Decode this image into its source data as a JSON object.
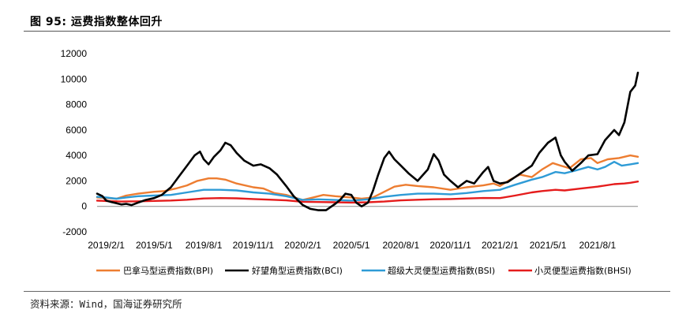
{
  "figure": {
    "title": "图 95: 运费指数整体回升",
    "source": "资料来源：Wind，国海证券研究所"
  },
  "chart_data": {
    "type": "line",
    "title": "",
    "xlabel": "",
    "ylabel": "",
    "ylim": [
      -2000,
      12000
    ],
    "yticks": [
      -2000,
      0,
      2000,
      4000,
      6000,
      8000,
      10000,
      12000
    ],
    "xticks": [
      "2019/2/1",
      "2019/5/1",
      "2019/8/1",
      "2019/11/1",
      "2020/2/1",
      "2020/5/1",
      "2020/8/1",
      "2020/11/1",
      "2021/2/1",
      "2021/5/1",
      "2021/8/1"
    ],
    "x_end": "2021/10/15",
    "grid": false,
    "legend": "bottom",
    "series": [
      {
        "name": "巴拿马型运费指数(BPI)",
        "color": "#ED7D31",
        "points": [
          [
            "2019/1/15",
            700
          ],
          [
            "2019/2/1",
            650
          ],
          [
            "2019/2/20",
            600
          ],
          [
            "2019/3/10",
            850
          ],
          [
            "2019/4/1",
            1000
          ],
          [
            "2019/5/1",
            1150
          ],
          [
            "2019/5/20",
            1200
          ],
          [
            "2019/6/10",
            1400
          ],
          [
            "2019/7/1",
            1650
          ],
          [
            "2019/7/20",
            2000
          ],
          [
            "2019/8/10",
            2200
          ],
          [
            "2019/8/25",
            2200
          ],
          [
            "2019/9/10",
            2100
          ],
          [
            "2019/10/1",
            1800
          ],
          [
            "2019/11/1",
            1500
          ],
          [
            "2019/11/20",
            1400
          ],
          [
            "2019/12/10",
            1050
          ],
          [
            "2020/1/1",
            900
          ],
          [
            "2020/1/20",
            650
          ],
          [
            "2020/2/1",
            500
          ],
          [
            "2020/2/20",
            700
          ],
          [
            "2020/3/10",
            900
          ],
          [
            "2020/4/1",
            800
          ],
          [
            "2020/5/1",
            700
          ],
          [
            "2020/5/20",
            600
          ],
          [
            "2020/6/10",
            700
          ],
          [
            "2020/7/1",
            1150
          ],
          [
            "2020/7/20",
            1550
          ],
          [
            "2020/8/10",
            1700
          ],
          [
            "2020/9/1",
            1600
          ],
          [
            "2020/10/1",
            1500
          ],
          [
            "2020/11/1",
            1300
          ],
          [
            "2020/12/1",
            1500
          ],
          [
            "2021/1/1",
            1650
          ],
          [
            "2021/1/20",
            1800
          ],
          [
            "2021/2/1",
            1600
          ],
          [
            "2021/2/20",
            2100
          ],
          [
            "2021/3/10",
            2500
          ],
          [
            "2021/4/1",
            2300
          ],
          [
            "2021/4/20",
            2900
          ],
          [
            "2021/5/10",
            3400
          ],
          [
            "2021/5/25",
            3200
          ],
          [
            "2021/6/10",
            3000
          ],
          [
            "2021/7/1",
            3700
          ],
          [
            "2021/7/20",
            3800
          ],
          [
            "2021/8/1",
            3400
          ],
          [
            "2021/8/20",
            3700
          ],
          [
            "2021/9/10",
            3800
          ],
          [
            "2021/10/1",
            4000
          ],
          [
            "2021/10/15",
            3900
          ]
        ]
      },
      {
        "name": "好望角型运费指数(BCI)",
        "color": "#000000",
        "points": [
          [
            "2019/1/15",
            1000
          ],
          [
            "2019/1/25",
            800
          ],
          [
            "2019/2/1",
            450
          ],
          [
            "2019/2/10",
            350
          ],
          [
            "2019/2/20",
            250
          ],
          [
            "2019/3/1",
            150
          ],
          [
            "2019/3/10",
            200
          ],
          [
            "2019/3/20",
            100
          ],
          [
            "2019/4/1",
            300
          ],
          [
            "2019/4/15",
            500
          ],
          [
            "2019/5/1",
            650
          ],
          [
            "2019/5/15",
            900
          ],
          [
            "2019/6/1",
            1500
          ],
          [
            "2019/6/15",
            2300
          ],
          [
            "2019/7/1",
            3200
          ],
          [
            "2019/7/15",
            4000
          ],
          [
            "2019/7/25",
            4300
          ],
          [
            "2019/8/1",
            3700
          ],
          [
            "2019/8/10",
            3300
          ],
          [
            "2019/8/20",
            3900
          ],
          [
            "2019/9/1",
            4400
          ],
          [
            "2019/9/10",
            5000
          ],
          [
            "2019/9/20",
            4800
          ],
          [
            "2019/10/1",
            4200
          ],
          [
            "2019/10/15",
            3600
          ],
          [
            "2019/11/1",
            3200
          ],
          [
            "2019/11/15",
            3300
          ],
          [
            "2019/12/1",
            3000
          ],
          [
            "2019/12/15",
            2500
          ],
          [
            "2020/1/1",
            1600
          ],
          [
            "2020/1/15",
            800
          ],
          [
            "2020/2/1",
            100
          ],
          [
            "2020/2/15",
            -200
          ],
          [
            "2020/3/1",
            -300
          ],
          [
            "2020/3/15",
            -300
          ],
          [
            "2020/4/1",
            200
          ],
          [
            "2020/4/10",
            500
          ],
          [
            "2020/4/20",
            1000
          ],
          [
            "2020/5/1",
            900
          ],
          [
            "2020/5/10",
            300
          ],
          [
            "2020/5/20",
            0
          ],
          [
            "2020/6/1",
            300
          ],
          [
            "2020/6/10",
            1200
          ],
          [
            "2020/6/20",
            2500
          ],
          [
            "2020/7/1",
            3800
          ],
          [
            "2020/7/10",
            4300
          ],
          [
            "2020/7/20",
            3700
          ],
          [
            "2020/8/1",
            3200
          ],
          [
            "2020/8/15",
            2600
          ],
          [
            "2020/9/1",
            2000
          ],
          [
            "2020/9/20",
            2900
          ],
          [
            "2020/10/1",
            4100
          ],
          [
            "2020/10/10",
            3600
          ],
          [
            "2020/10/20",
            2500
          ],
          [
            "2020/11/1",
            2000
          ],
          [
            "2020/11/15",
            1500
          ],
          [
            "2020/12/1",
            2000
          ],
          [
            "2020/12/15",
            1800
          ],
          [
            "2021/1/1",
            2700
          ],
          [
            "2021/1/10",
            3100
          ],
          [
            "2021/1/20",
            2000
          ],
          [
            "2021/2/1",
            1800
          ],
          [
            "2021/2/15",
            1900
          ],
          [
            "2021/3/1",
            2300
          ],
          [
            "2021/3/15",
            2700
          ],
          [
            "2021/4/1",
            3200
          ],
          [
            "2021/4/15",
            4200
          ],
          [
            "2021/5/1",
            5000
          ],
          [
            "2021/5/15",
            5400
          ],
          [
            "2021/5/25",
            4000
          ],
          [
            "2021/6/1",
            3500
          ],
          [
            "2021/6/15",
            2800
          ],
          [
            "2021/7/1",
            3400
          ],
          [
            "2021/7/15",
            4000
          ],
          [
            "2021/8/1",
            4100
          ],
          [
            "2021/8/15",
            5200
          ],
          [
            "2021/9/1",
            6000
          ],
          [
            "2021/9/10",
            5600
          ],
          [
            "2021/9/20",
            6600
          ],
          [
            "2021/10/1",
            9000
          ],
          [
            "2021/10/10",
            9500
          ],
          [
            "2021/10/15",
            10500
          ]
        ]
      },
      {
        "name": "超级大灵便型运费指数(BSI)",
        "color": "#2E9BD6",
        "points": [
          [
            "2019/1/15",
            750
          ],
          [
            "2019/2/1",
            700
          ],
          [
            "2019/2/20",
            600
          ],
          [
            "2019/3/10",
            700
          ],
          [
            "2019/4/1",
            800
          ],
          [
            "2019/5/1",
            850
          ],
          [
            "2019/6/1",
            900
          ],
          [
            "2019/7/1",
            1100
          ],
          [
            "2019/8/1",
            1300
          ],
          [
            "2019/9/1",
            1300
          ],
          [
            "2019/10/1",
            1250
          ],
          [
            "2019/11/1",
            1100
          ],
          [
            "2019/12/1",
            1000
          ],
          [
            "2020/1/1",
            800
          ],
          [
            "2020/2/1",
            500
          ],
          [
            "2020/3/1",
            550
          ],
          [
            "2020/4/1",
            500
          ],
          [
            "2020/5/1",
            450
          ],
          [
            "2020/6/1",
            550
          ],
          [
            "2020/7/1",
            750
          ],
          [
            "2020/8/1",
            900
          ],
          [
            "2020/9/1",
            1000
          ],
          [
            "2020/10/1",
            1000
          ],
          [
            "2020/11/1",
            950
          ],
          [
            "2020/12/1",
            1050
          ],
          [
            "2021/1/1",
            1200
          ],
          [
            "2021/2/1",
            1300
          ],
          [
            "2021/3/1",
            1700
          ],
          [
            "2021/4/1",
            2100
          ],
          [
            "2021/4/20",
            2300
          ],
          [
            "2021/5/15",
            2700
          ],
          [
            "2021/6/1",
            2600
          ],
          [
            "2021/6/20",
            2800
          ],
          [
            "2021/7/15",
            3100
          ],
          [
            "2021/8/1",
            2900
          ],
          [
            "2021/8/15",
            3100
          ],
          [
            "2021/9/1",
            3500
          ],
          [
            "2021/9/15",
            3200
          ],
          [
            "2021/10/1",
            3300
          ],
          [
            "2021/10/15",
            3400
          ]
        ]
      },
      {
        "name": "小灵便型运费指数(BHSI)",
        "color": "#E51C1C",
        "points": [
          [
            "2019/1/15",
            450
          ],
          [
            "2019/2/1",
            420
          ],
          [
            "2019/3/1",
            380
          ],
          [
            "2019/4/1",
            400
          ],
          [
            "2019/5/1",
            430
          ],
          [
            "2019/6/1",
            460
          ],
          [
            "2019/7/1",
            520
          ],
          [
            "2019/8/1",
            620
          ],
          [
            "2019/9/1",
            650
          ],
          [
            "2019/10/1",
            630
          ],
          [
            "2019/11/1",
            580
          ],
          [
            "2019/12/1",
            530
          ],
          [
            "2020/1/1",
            470
          ],
          [
            "2020/2/1",
            360
          ],
          [
            "2020/3/1",
            340
          ],
          [
            "2020/4/1",
            320
          ],
          [
            "2020/5/1",
            300
          ],
          [
            "2020/6/1",
            320
          ],
          [
            "2020/7/1",
            380
          ],
          [
            "2020/8/1",
            470
          ],
          [
            "2020/9/1",
            520
          ],
          [
            "2020/10/1",
            560
          ],
          [
            "2020/11/1",
            580
          ],
          [
            "2020/12/1",
            620
          ],
          [
            "2021/1/1",
            660
          ],
          [
            "2021/2/1",
            650
          ],
          [
            "2021/3/1",
            850
          ],
          [
            "2021/4/1",
            1100
          ],
          [
            "2021/4/20",
            1200
          ],
          [
            "2021/5/15",
            1300
          ],
          [
            "2021/6/1",
            1250
          ],
          [
            "2021/7/1",
            1400
          ],
          [
            "2021/8/1",
            1550
          ],
          [
            "2021/9/1",
            1750
          ],
          [
            "2021/9/20",
            1800
          ],
          [
            "2021/10/1",
            1850
          ],
          [
            "2021/10/15",
            1950
          ]
        ]
      }
    ]
  }
}
